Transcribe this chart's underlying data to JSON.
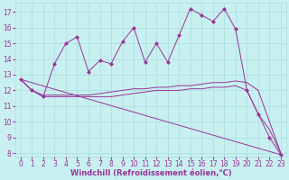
{
  "background_color": "#c8f0f0",
  "line_color": "#993399",
  "grid_color": "#aadddd",
  "xlabel": "Windchill (Refroidissement éolien,°C)",
  "xlim": [
    -0.5,
    23.5
  ],
  "ylim": [
    7.8,
    17.6
  ],
  "yticks": [
    8,
    9,
    10,
    11,
    12,
    13,
    14,
    15,
    16,
    17
  ],
  "xticks": [
    0,
    1,
    2,
    3,
    4,
    5,
    6,
    7,
    8,
    9,
    10,
    11,
    12,
    13,
    14,
    15,
    16,
    17,
    18,
    19,
    20,
    21,
    22,
    23
  ],
  "series1_x": [
    0,
    1,
    2,
    3,
    4,
    5,
    6,
    7,
    8,
    9,
    10,
    11,
    12,
    13,
    14,
    15,
    16,
    17,
    18,
    19,
    20,
    21,
    22,
    23
  ],
  "series1_y": [
    12.7,
    12.0,
    11.6,
    13.7,
    15.0,
    15.4,
    13.2,
    13.9,
    13.7,
    15.1,
    16.0,
    13.8,
    15.0,
    13.8,
    15.5,
    17.2,
    16.8,
    16.4,
    17.2,
    15.9,
    12.0,
    10.5,
    9.0,
    7.9
  ],
  "series2_x": [
    0,
    1,
    2,
    3,
    4,
    5,
    6,
    7,
    8,
    9,
    10,
    11,
    12,
    13,
    14,
    15,
    16,
    17,
    18,
    19,
    20,
    21,
    22,
    23
  ],
  "series2_y": [
    12.7,
    12.0,
    11.7,
    11.7,
    11.7,
    11.7,
    11.7,
    11.8,
    11.9,
    12.0,
    12.1,
    12.1,
    12.2,
    12.2,
    12.3,
    12.3,
    12.4,
    12.5,
    12.5,
    12.6,
    12.5,
    12.0,
    10.0,
    8.0
  ],
  "series3_x": [
    0,
    1,
    2,
    3,
    4,
    5,
    6,
    7,
    8,
    9,
    10,
    11,
    12,
    13,
    14,
    15,
    16,
    17,
    18,
    19,
    20,
    21,
    22,
    23
  ],
  "series3_y": [
    12.7,
    12.0,
    11.6,
    11.6,
    11.6,
    11.6,
    11.6,
    11.6,
    11.6,
    11.7,
    11.8,
    11.9,
    12.0,
    12.0,
    12.0,
    12.1,
    12.1,
    12.2,
    12.2,
    12.3,
    12.0,
    10.5,
    9.5,
    8.0
  ],
  "series4_x": [
    0,
    23
  ],
  "series4_y": [
    12.7,
    7.9
  ],
  "xlabel_color": "#993399",
  "xlabel_fontsize": 6,
  "tick_fontsize": 5.5,
  "tick_color": "#993399"
}
